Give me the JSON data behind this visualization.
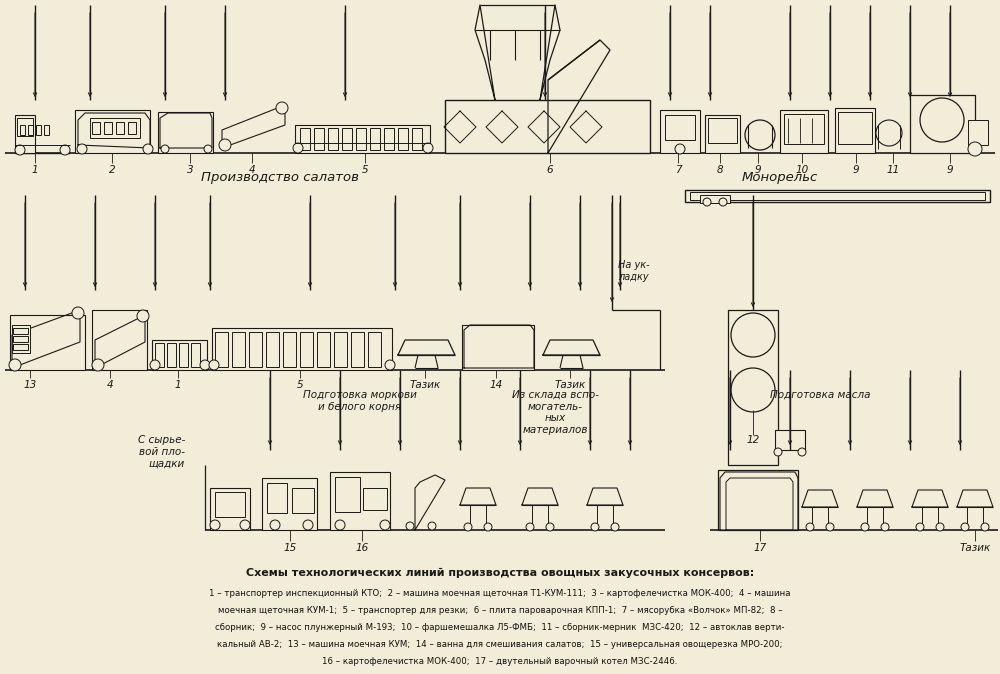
{
  "bg_color": "#f2edd8",
  "line_color": "#1a1a1a",
  "title_top": "Схемы технологических линий производства овощных закусочных консервов:",
  "caption_lines": [
    "1 – транспортер инспекционный КТО;  2 – машина моечная щеточная Т1-КУМ-111;  3 – картофелечистка МОК-400;  4 – машина",
    "моечная щеточная КУМ-1;  5 – транспортер для резки;  6 – плита пароварочная КПП-1;  7 – мясорубка «Волчок» МП-82;  8 –",
    "сборник;  9 – насос плунжерный М-193;  10 – фаршемешалка Л5-ФМБ;  11 – сборник-мерник  МЗС-420;  12 – автоклав верти-",
    "кальный АВ-2;  13 – машина моечная КУМ;  14 – ванна для смешивания салатов;  15 – универсальная овощерезка МРО-200;",
    "16 – картофелечистка МОК-400;  17 – двутельный варочный котел МЗС-2446."
  ],
  "section1_label": "Производство салатов",
  "section2_label": "Монорельс",
  "section3a_label": "С сырье-\nвой пло-\nщадки",
  "section3b_label": "Подготовка моркови\nи белого корня",
  "section3c_label": "Из склада вспо-\nмогатель-\nных\nматериалов",
  "section3d_label": "Подготовка масла",
  "label_na_ukladku": "На ук-\nладку",
  "label_tazik": "Тазик"
}
